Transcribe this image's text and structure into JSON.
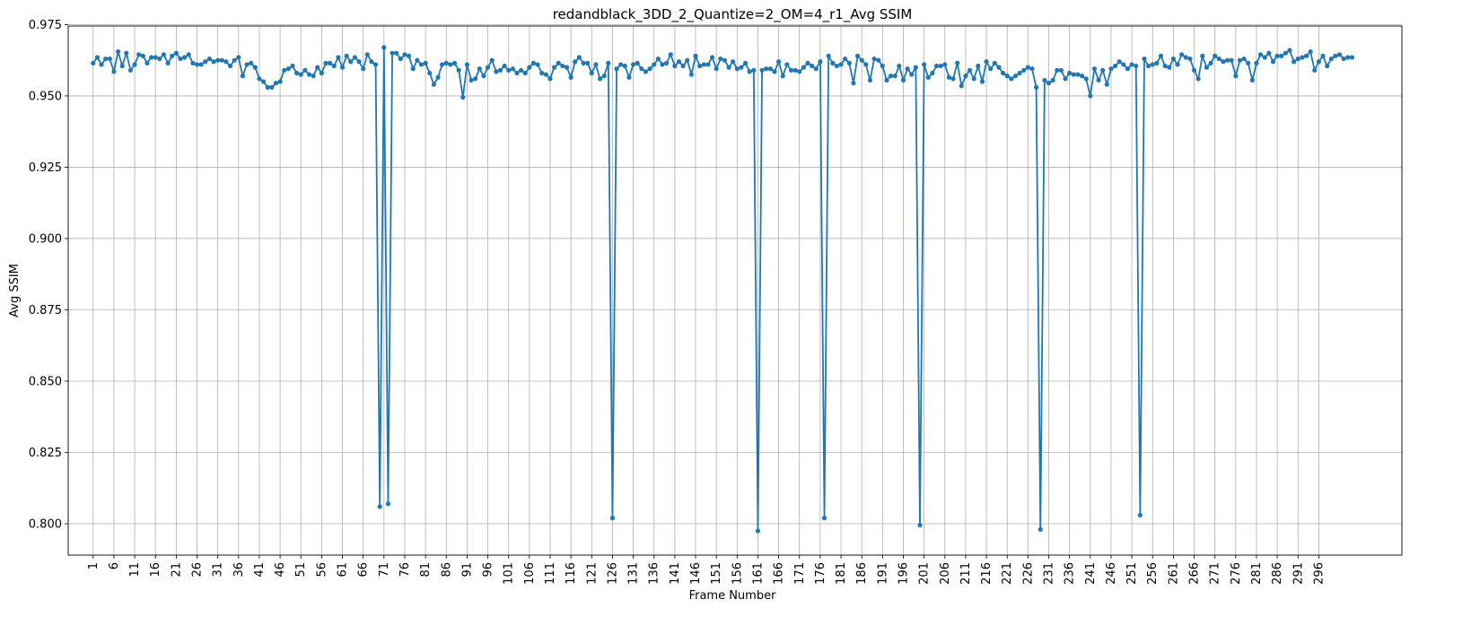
{
  "chart_data": {
    "type": "line",
    "title": "redandblack_3DD_2_Quantize=2_OM=4_r1_Avg SSIM",
    "xlabel": "Frame Number",
    "ylabel": "Avg SSIM",
    "xlim": [
      -5,
      316
    ],
    "ylim": [
      0.789,
      0.9745
    ],
    "xticks": [
      1,
      6,
      11,
      16,
      21,
      26,
      31,
      36,
      41,
      46,
      51,
      56,
      61,
      66,
      71,
      76,
      81,
      86,
      91,
      96,
      101,
      106,
      111,
      116,
      121,
      126,
      131,
      136,
      141,
      146,
      151,
      156,
      161,
      166,
      171,
      176,
      181,
      186,
      191,
      196,
      201,
      206,
      211,
      216,
      221,
      226,
      231,
      236,
      241,
      246,
      251,
      256,
      261,
      266,
      271,
      276,
      281,
      286,
      291,
      296
    ],
    "xtick_labels": [
      "1",
      "6",
      "11",
      "16",
      "21",
      "26",
      "31",
      "36",
      "41",
      "46",
      "51",
      "56",
      "61",
      "66",
      "71",
      "76",
      "81",
      "86",
      "91",
      "96",
      "101",
      "106",
      "111",
      "116",
      "121",
      "126",
      "131",
      "136",
      "141",
      "146",
      "151",
      "156",
      "161",
      "166",
      "171",
      "176",
      "181",
      "186",
      "191",
      "196",
      "201",
      "206",
      "211",
      "216",
      "221",
      "226",
      "231",
      "236",
      "241",
      "246",
      "251",
      "256",
      "261",
      "266",
      "271",
      "276",
      "281",
      "286",
      "291",
      "296"
    ],
    "yticks": [
      0.8,
      0.825,
      0.85,
      0.875,
      0.9,
      0.925,
      0.95,
      0.975
    ],
    "ytick_labels": [
      "0.800",
      "0.825",
      "0.850",
      "0.875",
      "0.900",
      "0.925",
      "0.950",
      "0.975"
    ],
    "grid": true,
    "color": "#1f77b4",
    "marker": "circle",
    "x_start": 1,
    "x_step": 1,
    "values": [
      0.9615,
      0.9635,
      0.961,
      0.963,
      0.963,
      0.9585,
      0.9655,
      0.9605,
      0.965,
      0.959,
      0.961,
      0.9645,
      0.964,
      0.9615,
      0.9635,
      0.9635,
      0.963,
      0.9645,
      0.9615,
      0.964,
      0.965,
      0.963,
      0.9635,
      0.9645,
      0.9615,
      0.961,
      0.961,
      0.962,
      0.963,
      0.962,
      0.9625,
      0.9625,
      0.962,
      0.9605,
      0.9625,
      0.9635,
      0.957,
      0.961,
      0.9615,
      0.96,
      0.956,
      0.955,
      0.953,
      0.953,
      0.9545,
      0.955,
      0.959,
      0.9595,
      0.9605,
      0.958,
      0.9575,
      0.959,
      0.9575,
      0.957,
      0.96,
      0.958,
      0.9615,
      0.9615,
      0.9605,
      0.9635,
      0.96,
      0.964,
      0.962,
      0.9635,
      0.962,
      0.9595,
      0.9645,
      0.962,
      0.961,
      0.806,
      0.967,
      0.807,
      0.965,
      0.965,
      0.963,
      0.9645,
      0.964,
      0.9595,
      0.9625,
      0.961,
      0.9615,
      0.958,
      0.954,
      0.9565,
      0.961,
      0.9615,
      0.961,
      0.9615,
      0.959,
      0.9495,
      0.961,
      0.9555,
      0.956,
      0.9595,
      0.957,
      0.96,
      0.9625,
      0.9585,
      0.959,
      0.9605,
      0.959,
      0.9595,
      0.958,
      0.959,
      0.958,
      0.96,
      0.9615,
      0.961,
      0.958,
      0.9575,
      0.956,
      0.96,
      0.9615,
      0.9605,
      0.96,
      0.9565,
      0.962,
      0.9635,
      0.9615,
      0.9615,
      0.958,
      0.961,
      0.956,
      0.957,
      0.9615,
      0.802,
      0.9595,
      0.961,
      0.9605,
      0.9565,
      0.961,
      0.9615,
      0.9595,
      0.9585,
      0.9595,
      0.961,
      0.963,
      0.961,
      0.9615,
      0.9645,
      0.9605,
      0.962,
      0.9605,
      0.9625,
      0.9575,
      0.964,
      0.9605,
      0.961,
      0.961,
      0.9635,
      0.9595,
      0.963,
      0.9625,
      0.96,
      0.962,
      0.9595,
      0.96,
      0.9615,
      0.9585,
      0.959,
      0.7975,
      0.959,
      0.9595,
      0.9595,
      0.9585,
      0.962,
      0.957,
      0.961,
      0.959,
      0.959,
      0.9585,
      0.96,
      0.9615,
      0.9605,
      0.9595,
      0.962,
      0.802,
      0.964,
      0.9615,
      0.9605,
      0.961,
      0.963,
      0.9615,
      0.9545,
      0.964,
      0.9625,
      0.961,
      0.9555,
      0.963,
      0.9625,
      0.9605,
      0.9555,
      0.957,
      0.957,
      0.9605,
      0.9555,
      0.9595,
      0.9575,
      0.96,
      0.7995,
      0.961,
      0.9565,
      0.958,
      0.9605,
      0.9605,
      0.961,
      0.9565,
      0.956,
      0.9615,
      0.9535,
      0.957,
      0.959,
      0.956,
      0.9605,
      0.955,
      0.962,
      0.9595,
      0.9615,
      0.96,
      0.958,
      0.957,
      0.956,
      0.957,
      0.958,
      0.959,
      0.96,
      0.9595,
      0.953,
      0.798,
      0.9555,
      0.9545,
      0.9555,
      0.959,
      0.959,
      0.956,
      0.958,
      0.9575,
      0.9575,
      0.957,
      0.956,
      0.95,
      0.9595,
      0.9555,
      0.959,
      0.954,
      0.9595,
      0.9605,
      0.962,
      0.961,
      0.9595,
      0.961,
      0.9605,
      0.803,
      0.963,
      0.9605,
      0.961,
      0.9615,
      0.964,
      0.9605,
      0.96,
      0.963,
      0.961,
      0.9645,
      0.9635,
      0.963,
      0.959,
      0.956,
      0.964,
      0.96,
      0.9615,
      0.964,
      0.963,
      0.962,
      0.9625,
      0.9625,
      0.957,
      0.9625,
      0.963,
      0.9615,
      0.9555,
      0.9615,
      0.9645,
      0.9635,
      0.965,
      0.962,
      0.964,
      0.964,
      0.965,
      0.966,
      0.962,
      0.963,
      0.9635,
      0.964,
      0.9655,
      0.959,
      0.962,
      0.964,
      0.9605,
      0.963,
      0.964,
      0.9645,
      0.963,
      0.9635,
      0.9635
    ]
  }
}
